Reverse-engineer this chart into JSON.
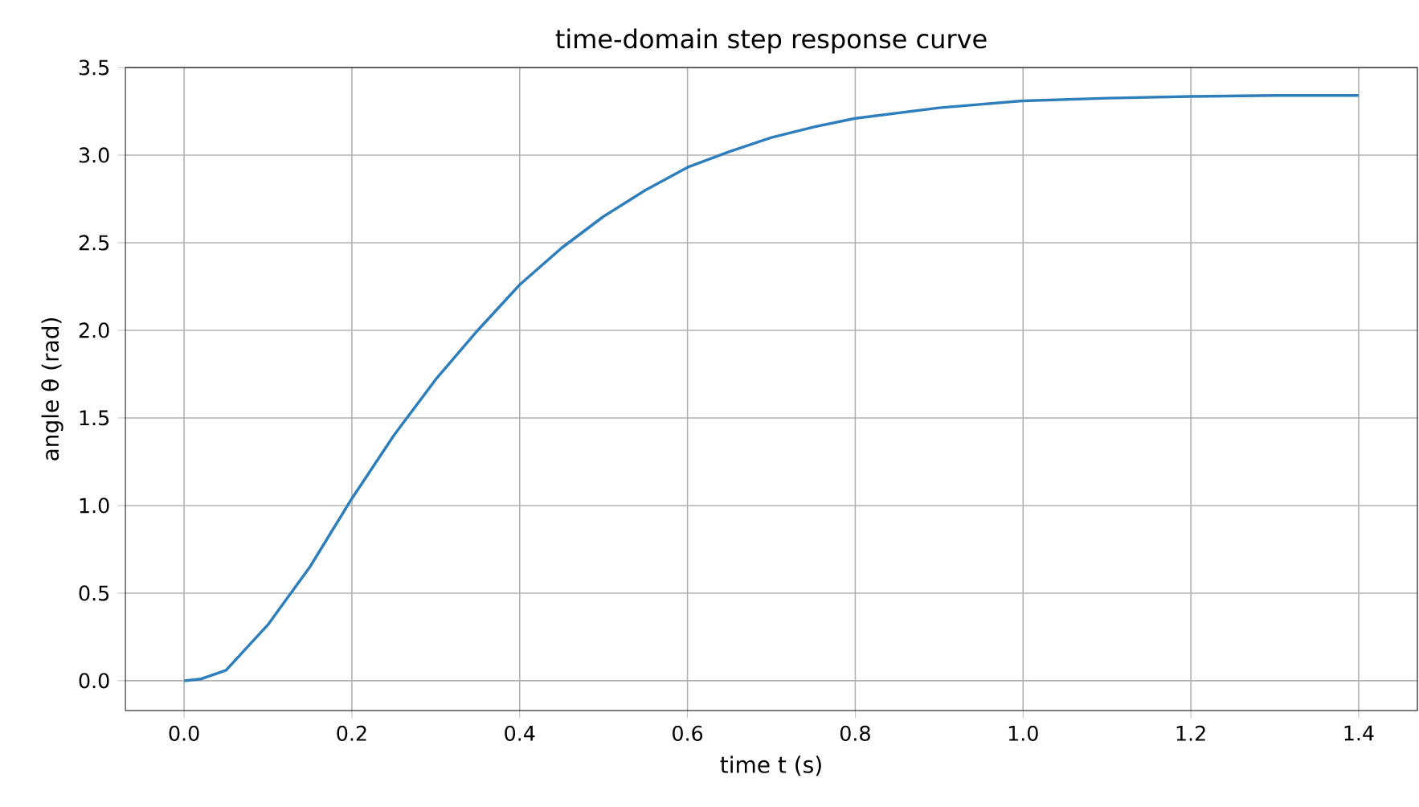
{
  "chart_data": {
    "type": "line",
    "title": "time-domain step response curve",
    "xlabel": "time t (s)",
    "ylabel": "angle θ (rad)",
    "xlim": [
      -0.07,
      1.47
    ],
    "ylim": [
      -0.17,
      3.5
    ],
    "xticks": [
      {
        "value": 0,
        "label": "0.0"
      },
      {
        "value": 0.2,
        "label": "0.2"
      },
      {
        "value": 0.4,
        "label": "0.4"
      },
      {
        "value": 0.6,
        "label": "0.6"
      },
      {
        "value": 0.8,
        "label": "0.8"
      },
      {
        "value": 1,
        "label": "1.0"
      },
      {
        "value": 1.2,
        "label": "1.2"
      },
      {
        "value": 1.4,
        "label": "1.4"
      }
    ],
    "yticks": [
      {
        "value": 0,
        "label": "0.0"
      },
      {
        "value": 0.5,
        "label": "0.5"
      },
      {
        "value": 1,
        "label": "1.0"
      },
      {
        "value": 1.5,
        "label": "1.5"
      },
      {
        "value": 2,
        "label": "2.0"
      },
      {
        "value": 2.5,
        "label": "2.5"
      },
      {
        "value": 3,
        "label": "3.0"
      },
      {
        "value": 3.5,
        "label": "3.5"
      }
    ],
    "grid": true,
    "x": [
      0,
      0.02,
      0.05,
      0.1,
      0.15,
      0.2,
      0.25,
      0.3,
      0.35,
      0.4,
      0.45,
      0.5,
      0.55,
      0.6,
      0.65,
      0.7,
      0.75,
      0.8,
      0.9,
      1.0,
      1.1,
      1.2,
      1.3,
      1.4
    ],
    "series": [
      {
        "color": "#2e7ebc",
        "values": [
          0,
          0.01,
          0.06,
          0.32,
          0.65,
          1.04,
          1.4,
          1.72,
          2.0,
          2.26,
          2.47,
          2.65,
          2.8,
          2.93,
          3.02,
          3.1,
          3.16,
          3.21,
          3.27,
          3.31,
          3.325,
          3.335,
          3.34,
          3.34
        ]
      }
    ]
  }
}
